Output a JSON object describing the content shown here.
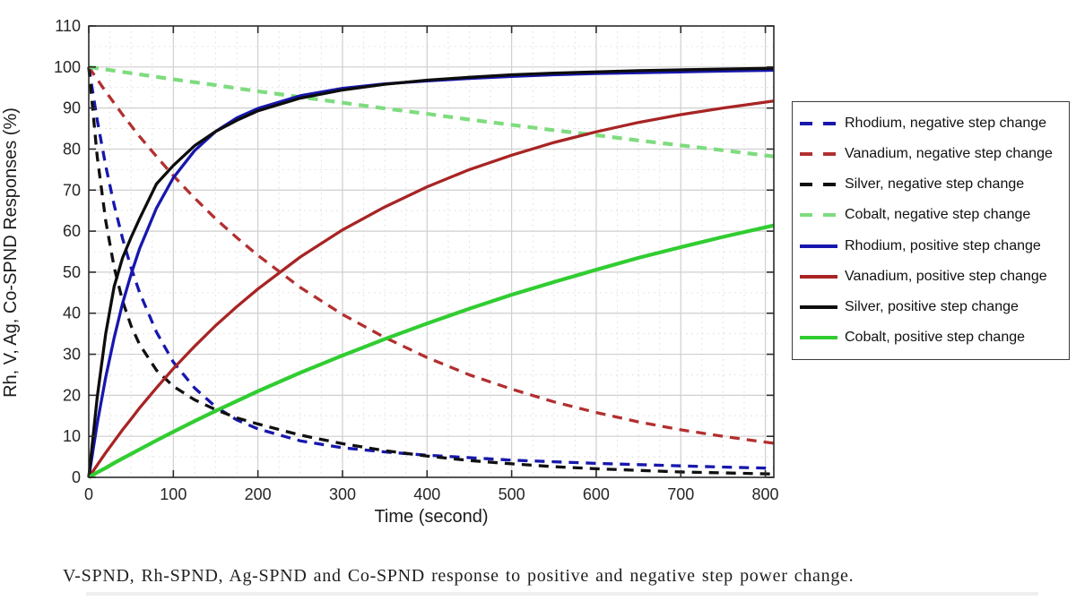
{
  "figure": {
    "caption": "V-SPND, Rh-SPND, Ag-SPND and Co-SPND response to positive and negative step power change.",
    "background_color": "#ffffff"
  },
  "chart_data": {
    "type": "line",
    "title": "",
    "xlabel": "Time (second)",
    "ylabel": "Rh, V, Ag, Co-SPND Responses (%)",
    "xlim": [
      0,
      810
    ],
    "ylim": [
      0,
      110
    ],
    "x_ticks": [
      0,
      100,
      200,
      300,
      400,
      500,
      600,
      700,
      800
    ],
    "y_ticks": [
      0,
      10,
      20,
      30,
      40,
      50,
      60,
      70,
      80,
      90,
      100,
      110
    ],
    "x_minor_step": 25,
    "y_minor_step": 5,
    "grid": {
      "major_style": "solid",
      "minor_style": "dotted",
      "major_color": "#cfcfcf",
      "minor_color": "#dcdcdc"
    },
    "axis_color": "#2b2b2b",
    "tick_label_color": "#262626",
    "legend_position": "outside-right",
    "x": [
      0,
      10,
      20,
      30,
      40,
      50,
      60,
      80,
      100,
      125,
      150,
      175,
      200,
      250,
      300,
      350,
      400,
      450,
      500,
      550,
      600,
      650,
      700,
      750,
      810
    ],
    "series": [
      {
        "key": "rhodium-negative",
        "label": "Rhodium, negative step change",
        "color": "#1717ad",
        "style": "dashed",
        "values": [
          100,
          87.1,
          75.9,
          66.4,
          58.2,
          51.1,
          45.1,
          35.4,
          28.1,
          21.8,
          17.2,
          14.0,
          11.8,
          8.9,
          7.2,
          6.2,
          5.4,
          4.8,
          4.2,
          3.8,
          3.4,
          3.1,
          2.8,
          2.5,
          2.2
        ]
      },
      {
        "key": "vanadium-negative",
        "label": "Vanadium, negative step change",
        "color": "#b32f2f",
        "style": "dashed",
        "values": [
          100,
          97.0,
          94.0,
          91.2,
          88.4,
          85.7,
          83.1,
          78.2,
          73.5,
          68.1,
          63.0,
          58.4,
          54.1,
          46.3,
          39.7,
          34.1,
          29.2,
          25.0,
          21.5,
          18.4,
          15.8,
          13.5,
          11.6,
          10.0,
          8.3
        ]
      },
      {
        "key": "silver-negative",
        "label": "Silver, negative step change",
        "color": "#101010",
        "style": "dashed",
        "values": [
          100,
          78.2,
          62.5,
          51.2,
          43.0,
          36.9,
          32.4,
          26.1,
          22.2,
          18.9,
          16.5,
          14.5,
          13.0,
          10.3,
          8.2,
          6.5,
          5.2,
          4.1,
          3.3,
          2.6,
          2.1,
          1.7,
          1.3,
          1.1,
          0.8
        ]
      },
      {
        "key": "cobalt-negative",
        "label": "Cobalt, negative step change",
        "color": "#7edc7e",
        "style": "dashed",
        "values": [
          100,
          99.7,
          99.4,
          99.1,
          98.8,
          98.5,
          98.2,
          97.6,
          97.0,
          96.3,
          95.6,
          94.8,
          94.1,
          92.7,
          91.3,
          89.9,
          88.6,
          87.2,
          85.9,
          84.6,
          83.4,
          82.1,
          80.9,
          79.7,
          78.2
        ]
      },
      {
        "key": "rhodium-positive",
        "label": "Rhodium, positive step change",
        "color": "#1717ad",
        "style": "solid",
        "values": [
          0,
          13.1,
          24.4,
          34.0,
          42.4,
          49.5,
          55.7,
          65.6,
          73.0,
          79.6,
          84.3,
          87.6,
          89.9,
          93.0,
          94.8,
          95.9,
          96.6,
          97.2,
          97.7,
          98.1,
          98.4,
          98.6,
          98.8,
          99.0,
          99.2
        ]
      },
      {
        "key": "vanadium-positive",
        "label": "Vanadium, positive step change",
        "color": "#a82424",
        "style": "solid",
        "values": [
          0,
          3.0,
          6.0,
          8.8,
          11.6,
          14.2,
          16.9,
          21.8,
          26.5,
          31.9,
          37.0,
          41.6,
          45.9,
          53.7,
          60.3,
          65.9,
          70.8,
          75.0,
          78.5,
          81.6,
          84.2,
          86.5,
          88.4,
          90.0,
          91.7
        ]
      },
      {
        "key": "silver-positive",
        "label": "Silver, positive step change",
        "color": "#0d0d0d",
        "style": "solid",
        "values": [
          0,
          19.5,
          35.0,
          46.5,
          53.5,
          58.5,
          63.0,
          71.5,
          76.0,
          80.8,
          84.3,
          87.0,
          89.3,
          92.4,
          94.4,
          95.8,
          96.8,
          97.5,
          98.1,
          98.5,
          98.8,
          99.1,
          99.3,
          99.5,
          99.7
        ]
      },
      {
        "key": "cobalt-positive",
        "label": "Cobalt, positive step change",
        "color": "#31cd31",
        "style": "solid",
        "values": [
          0,
          1.2,
          2.3,
          3.5,
          4.6,
          5.7,
          6.8,
          9.0,
          11.1,
          13.7,
          16.2,
          18.6,
          21.0,
          25.5,
          29.7,
          33.7,
          37.5,
          41.1,
          44.5,
          47.6,
          50.6,
          53.5,
          56.1,
          58.6,
          61.4
        ]
      }
    ]
  }
}
